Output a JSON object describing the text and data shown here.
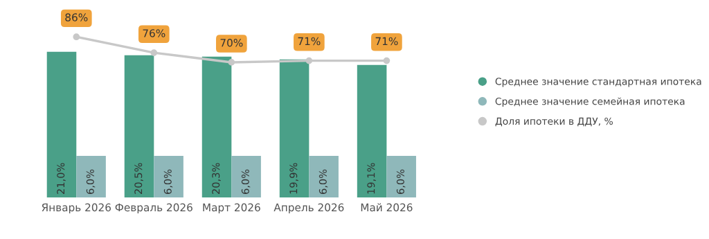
{
  "chart_data": {
    "type": "bar",
    "categories": [
      "Январь 2026",
      "Февраль 2026",
      "Март 2026",
      "Апрель 2026",
      "Май 2026"
    ],
    "series": [
      {
        "name": "Среднее значение стандартная ипотека",
        "color": "#4aa088",
        "values": [
          21.0,
          20.5,
          20.3,
          19.9,
          19.1
        ],
        "value_labels": [
          "21,0%",
          "20,5%",
          "20,3%",
          "19,9%",
          "19,1%"
        ]
      },
      {
        "name": "Среднее значение семейная ипотека",
        "color": "#8fb8ba",
        "values": [
          6.0,
          6.0,
          6.0,
          6.0,
          6.0
        ],
        "value_labels": [
          "6,0%",
          "6,0%",
          "6,0%",
          "6,0%",
          "6,0%"
        ]
      },
      {
        "name": "Доля ипотеки в ДДУ, %",
        "type": "line",
        "axis": "y2",
        "color": "#c8c8c8",
        "marker": "circle",
        "values": [
          86,
          76,
          70,
          71,
          71
        ],
        "value_labels": [
          "86%",
          "76%",
          "70%",
          "71%",
          "71%"
        ]
      }
    ],
    "ylim": [
      0,
      25
    ],
    "y2lim": [
      -15,
      94
    ],
    "tick_labels": "x",
    "grid": false,
    "legend": "right"
  }
}
